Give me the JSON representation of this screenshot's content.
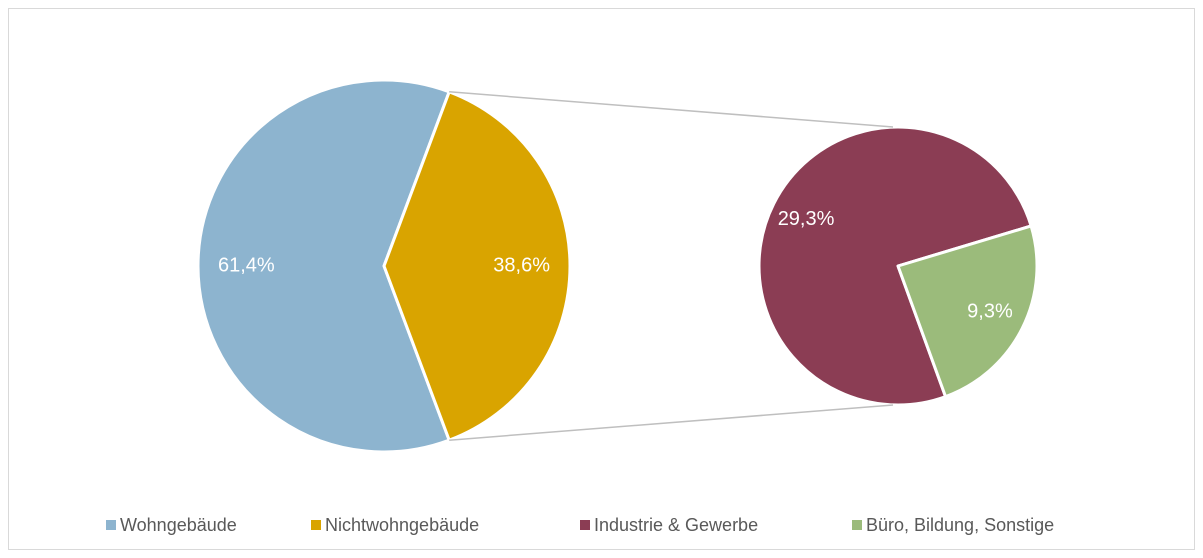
{
  "chart_data": [
    {
      "type": "pie",
      "categories": [
        "Wohngebäude",
        "Nichtwohngebäude"
      ],
      "values": [
        61.4,
        38.6
      ],
      "value_labels": [
        "61,4%",
        "38,6%"
      ],
      "colors": [
        "#8db4cf",
        "#d9a400"
      ]
    },
    {
      "type": "pie",
      "categories": [
        "Industrie & Gewerbe",
        "Büro, Bildung, Sonstige"
      ],
      "values": [
        29.3,
        9.3
      ],
      "value_labels": [
        "29,3%",
        "9,3%"
      ],
      "colors": [
        "#8b3d54",
        "#9bbb7b"
      ]
    }
  ]
}
